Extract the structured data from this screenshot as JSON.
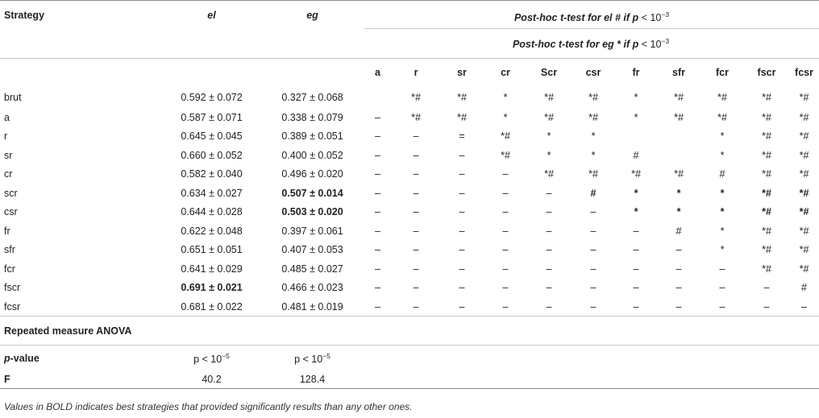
{
  "headers": {
    "strategy": "Strategy",
    "el": "el",
    "eg": "eg",
    "posthoc_el_prefix": "Post-hoc",
    "posthoc_el_mid": "t",
    "posthoc_el_text": "-test for el # if p",
    "posthoc_el_thr": "< 10",
    "posthoc_el_exp": "−3",
    "posthoc_eg_prefix": "Post-hoc",
    "posthoc_eg_mid": "t",
    "posthoc_eg_text": "-test for eg * if p",
    "posthoc_eg_thr": "< 10",
    "posthoc_eg_exp": "−3",
    "columns": [
      "a",
      "r",
      "sr",
      "cr",
      "Scr",
      "csr",
      "fr",
      "sfr",
      "fcr",
      "fscr",
      "fcsr"
    ]
  },
  "rows": [
    {
      "label": "brut",
      "el": "0.592 ± 0.072",
      "eg": "0.327 ± 0.068",
      "el_bold": false,
      "eg_bold": false,
      "cells": [
        "",
        "*#",
        "*#",
        "*",
        "*#",
        "*#",
        "*",
        "*#",
        "*#",
        "*#",
        "*#"
      ],
      "bold_cells": []
    },
    {
      "label": "a",
      "el": "0.587 ± 0.071",
      "eg": "0.338 ± 0.079",
      "el_bold": false,
      "eg_bold": false,
      "cells": [
        "–",
        "*#",
        "*#",
        "*",
        "*#",
        "*#",
        "*",
        "*#",
        "*#",
        "*#",
        "*#"
      ],
      "bold_cells": []
    },
    {
      "label": "r",
      "el": "0.645 ± 0.045",
      "eg": "0.389 ± 0.051",
      "el_bold": false,
      "eg_bold": false,
      "cells": [
        "–",
        "–",
        "=",
        "*#",
        "*",
        "*",
        "",
        "",
        "*",
        "*#",
        "*#"
      ],
      "bold_cells": []
    },
    {
      "label": "sr",
      "el": "0.660 ± 0.052",
      "eg": "0.400 ± 0.052",
      "el_bold": false,
      "eg_bold": false,
      "cells": [
        "–",
        "–",
        "–",
        "*#",
        "*",
        "*",
        "#",
        "",
        "*",
        "*#",
        "*#"
      ],
      "bold_cells": []
    },
    {
      "label": "cr",
      "el": "0.582 ± 0.040",
      "eg": "0.496 ± 0.020",
      "el_bold": false,
      "eg_bold": false,
      "cells": [
        "–",
        "–",
        "–",
        "–",
        "*#",
        "*#",
        "*#",
        "*#",
        "#",
        "*#",
        "*#"
      ],
      "bold_cells": []
    },
    {
      "label": "scr",
      "el": "0.634 ± 0.027",
      "eg": "0.507 ± 0.014",
      "el_bold": false,
      "eg_bold": true,
      "cells": [
        "–",
        "–",
        "–",
        "–",
        "–",
        "#",
        "*",
        "*",
        "*",
        "*#",
        "*#"
      ],
      "bold_cells": [
        5,
        6,
        7,
        8,
        9,
        10
      ]
    },
    {
      "label": "csr",
      "el": "0.644 ± 0.028",
      "eg": "0.503 ± 0.020",
      "el_bold": false,
      "eg_bold": true,
      "cells": [
        "–",
        "–",
        "–",
        "–",
        "–",
        "–",
        "*",
        "*",
        "*",
        "*#",
        "*#"
      ],
      "bold_cells": [
        6,
        7,
        8,
        9,
        10
      ]
    },
    {
      "label": "fr",
      "el": "0.622 ± 0.048",
      "eg": "0.397 ± 0.061",
      "el_bold": false,
      "eg_bold": false,
      "cells": [
        "–",
        "–",
        "–",
        "–",
        "–",
        "–",
        "–",
        "#",
        "*",
        "*#",
        "*#"
      ],
      "bold_cells": []
    },
    {
      "label": "sfr",
      "el": "0.651 ± 0.051",
      "eg": "0.407 ± 0.053",
      "el_bold": false,
      "eg_bold": false,
      "cells": [
        "–",
        "–",
        "–",
        "–",
        "–",
        "–",
        "–",
        "–",
        "*",
        "*#",
        "*#"
      ],
      "bold_cells": []
    },
    {
      "label": "fcr",
      "el": "0.641 ± 0.029",
      "eg": "0.485 ± 0.027",
      "el_bold": false,
      "eg_bold": false,
      "cells": [
        "–",
        "–",
        "–",
        "–",
        "–",
        "–",
        "–",
        "–",
        "–",
        "*#",
        "*#"
      ],
      "bold_cells": []
    },
    {
      "label": "fscr",
      "el": "0.691 ± 0.021",
      "eg": "0.466 ± 0.023",
      "el_bold": true,
      "eg_bold": false,
      "cells": [
        "–",
        "–",
        "–",
        "–",
        "–",
        "–",
        "–",
        "–",
        "–",
        "–",
        "#"
      ],
      "bold_cells": []
    },
    {
      "label": "fcsr",
      "el": "0.681 ± 0.022",
      "eg": "0.481 ± 0.019",
      "el_bold": false,
      "eg_bold": false,
      "cells": [
        "–",
        "–",
        "–",
        "–",
        "–",
        "–",
        "–",
        "–",
        "–",
        "–",
        "–"
      ],
      "bold_cells": []
    }
  ],
  "anova": {
    "title": "Repeated measure ANOVA",
    "pvalue_label_p": "p",
    "pvalue_label_rest": "-value",
    "el_p": "p < 10",
    "el_p_exp": "−5",
    "eg_p": "p < 10",
    "eg_p_exp": "−5",
    "f_label": "F",
    "el_f": "40.2",
    "eg_f": "128.4"
  },
  "footnote": "Values in BOLD indicates best strategies that provided significantly results than any other ones."
}
